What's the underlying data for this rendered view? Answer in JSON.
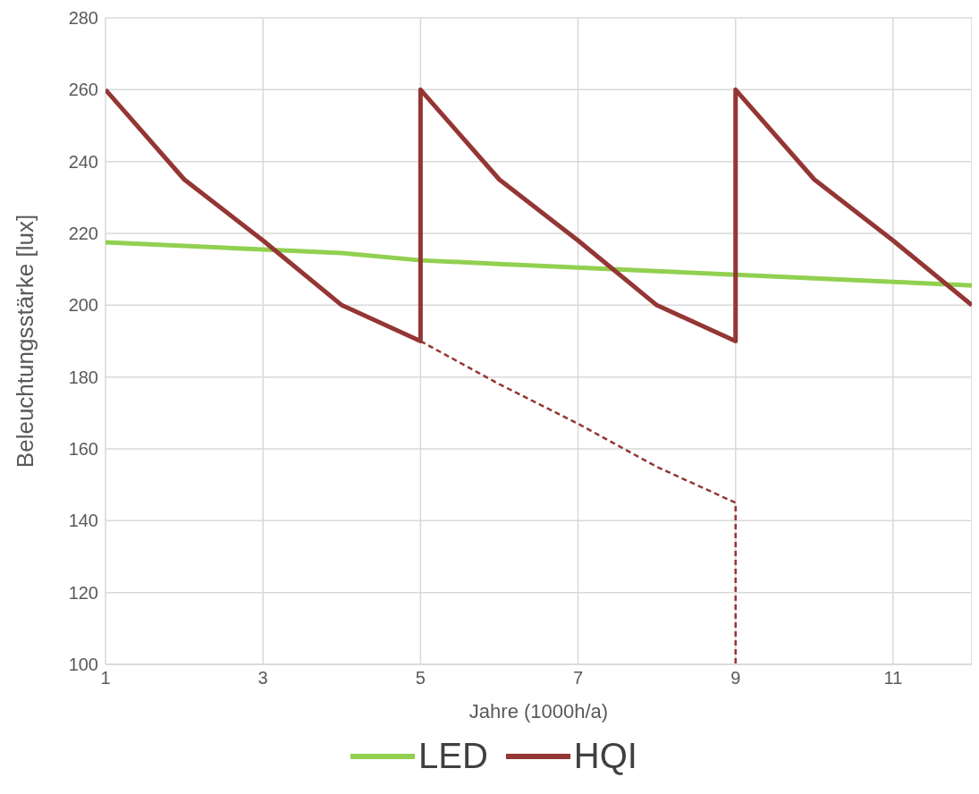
{
  "chart_data": {
    "type": "line",
    "xlabel": "Jahre (1000h/a)",
    "ylabel": "Beleuchtungsstärke [lux]",
    "xlim": [
      1,
      12
    ],
    "xticks": [
      1,
      3,
      5,
      7,
      9,
      11
    ],
    "ylim": [
      100,
      280
    ],
    "yticks": [
      100,
      120,
      140,
      160,
      180,
      200,
      220,
      240,
      260,
      280
    ],
    "grid": true,
    "legend": "bottom",
    "marker": "none",
    "series": [
      {
        "name": "LED",
        "color": "#92d050",
        "line_style": "solid",
        "x": [
          1,
          2,
          3,
          4,
          5,
          6,
          7,
          8,
          9,
          10,
          11,
          12
        ],
        "values": [
          217.5,
          216.5,
          215.5,
          214.5,
          212.5,
          211.5,
          210.5,
          209.5,
          208.5,
          207.5,
          206.5,
          205.5
        ]
      },
      {
        "name": "HQI",
        "color": "#943634",
        "line_style": "solid",
        "x": [
          1,
          2,
          3,
          4,
          5,
          5,
          6,
          7,
          8,
          9,
          9,
          10,
          11,
          12
        ],
        "values": [
          260,
          235,
          218,
          200,
          190,
          260,
          235,
          218,
          200,
          190,
          260,
          235,
          218,
          200
        ]
      },
      {
        "color": "#943634",
        "line_style": "dashed",
        "x": [
          5,
          6,
          7,
          8,
          9,
          9
        ],
        "values": [
          190,
          178,
          167,
          155,
          145,
          100
        ]
      }
    ]
  }
}
